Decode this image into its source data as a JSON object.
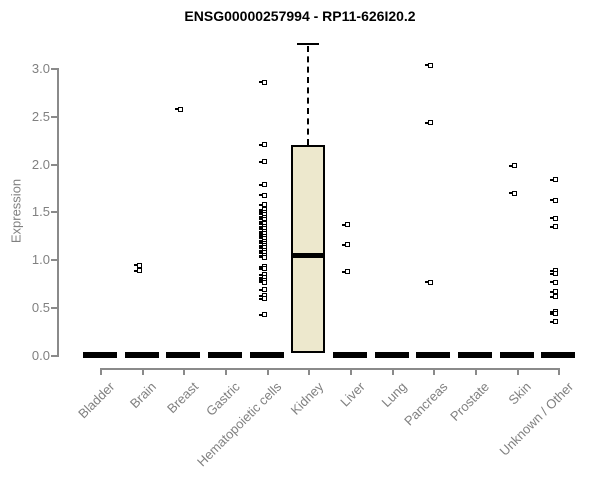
{
  "chart_data": {
    "type": "boxplot",
    "title": "ENSG00000257994 - RP11-626I20.2",
    "ylabel": "Expression",
    "xlabel": "",
    "ylim": [
      0,
      3.3
    ],
    "y_ticks": [
      0.0,
      0.5,
      1.0,
      1.5,
      2.0,
      2.5,
      3.0
    ],
    "grid": false,
    "legend": "none",
    "categories": [
      "Bladder",
      "Brain",
      "Breast",
      "Gastric",
      "Hematopoietic cells",
      "Kidney",
      "Liver",
      "Lung",
      "Pancreas",
      "Prostate",
      "Skin",
      "Unknown / Other"
    ],
    "series": [
      {
        "category": "Bladder",
        "box": {
          "q1": 0,
          "median": 0,
          "q3": 0,
          "whisker_low": 0,
          "whisker_high": 0
        },
        "points": []
      },
      {
        "category": "Brain",
        "box": {
          "q1": 0,
          "median": 0,
          "q3": 0,
          "whisker_low": 0,
          "whisker_high": 0
        },
        "points": [
          0.94,
          0.88
        ]
      },
      {
        "category": "Breast",
        "box": {
          "q1": 0,
          "median": 0,
          "q3": 0,
          "whisker_low": 0,
          "whisker_high": 0
        },
        "points": [
          2.57
        ]
      },
      {
        "category": "Gastric",
        "box": {
          "q1": 0,
          "median": 0,
          "q3": 0,
          "whisker_low": 0,
          "whisker_high": 0
        },
        "points": []
      },
      {
        "category": "Hematopoietic cells",
        "box": {
          "q1": 0,
          "median": 0,
          "q3": 0,
          "whisker_low": 0,
          "whisker_high": 0
        },
        "points": [
          2.85,
          2.2,
          2.02,
          1.78,
          1.67,
          1.57,
          1.52,
          1.49,
          1.47,
          1.44,
          1.42,
          1.39,
          1.37,
          1.34,
          1.32,
          1.29,
          1.27,
          1.24,
          1.22,
          1.19,
          1.17,
          1.14,
          1.12,
          1.09,
          1.07,
          1.04,
          1.02,
          0.92,
          0.9,
          0.84,
          0.81,
          0.78,
          0.76,
          0.68,
          0.62,
          0.59,
          0.42
        ]
      },
      {
        "category": "Kidney",
        "box": {
          "q1": 0.02,
          "median": 1.05,
          "q3": 2.2,
          "whisker_low": 0.02,
          "whisker_high": 3.26
        },
        "points": []
      },
      {
        "category": "Liver",
        "box": {
          "q1": 0,
          "median": 0,
          "q3": 0,
          "whisker_low": 0,
          "whisker_high": 0
        },
        "points": [
          1.36,
          1.15,
          0.87
        ]
      },
      {
        "category": "Lung",
        "box": {
          "q1": 0,
          "median": 0,
          "q3": 0,
          "whisker_low": 0,
          "whisker_high": 0
        },
        "points": []
      },
      {
        "category": "Pancreas",
        "box": {
          "q1": 0,
          "median": 0,
          "q3": 0,
          "whisker_low": 0,
          "whisker_high": 0
        },
        "points": [
          3.03,
          2.43,
          0.76
        ]
      },
      {
        "category": "Prostate",
        "box": {
          "q1": 0,
          "median": 0,
          "q3": 0,
          "whisker_low": 0,
          "whisker_high": 0
        },
        "points": []
      },
      {
        "category": "Skin",
        "box": {
          "q1": 0,
          "median": 0,
          "q3": 0,
          "whisker_low": 0,
          "whisker_high": 0
        },
        "points": [
          1.98,
          1.69
        ]
      },
      {
        "category": "Unknown / Other",
        "box": {
          "q1": 0,
          "median": 0,
          "q3": 0,
          "whisker_low": 0,
          "whisker_high": 0
        },
        "points": [
          1.83,
          1.62,
          1.43,
          1.34,
          0.88,
          0.85,
          0.76,
          0.66,
          0.61,
          0.45,
          0.43,
          0.35
        ]
      }
    ],
    "colors": {
      "box_fill": "#EDE8CD",
      "box_stroke": "#000000",
      "median": "#000000",
      "points": "#000000",
      "axis": "#8A8A8A",
      "tick_labels": "#808080",
      "title": "#000000"
    }
  }
}
